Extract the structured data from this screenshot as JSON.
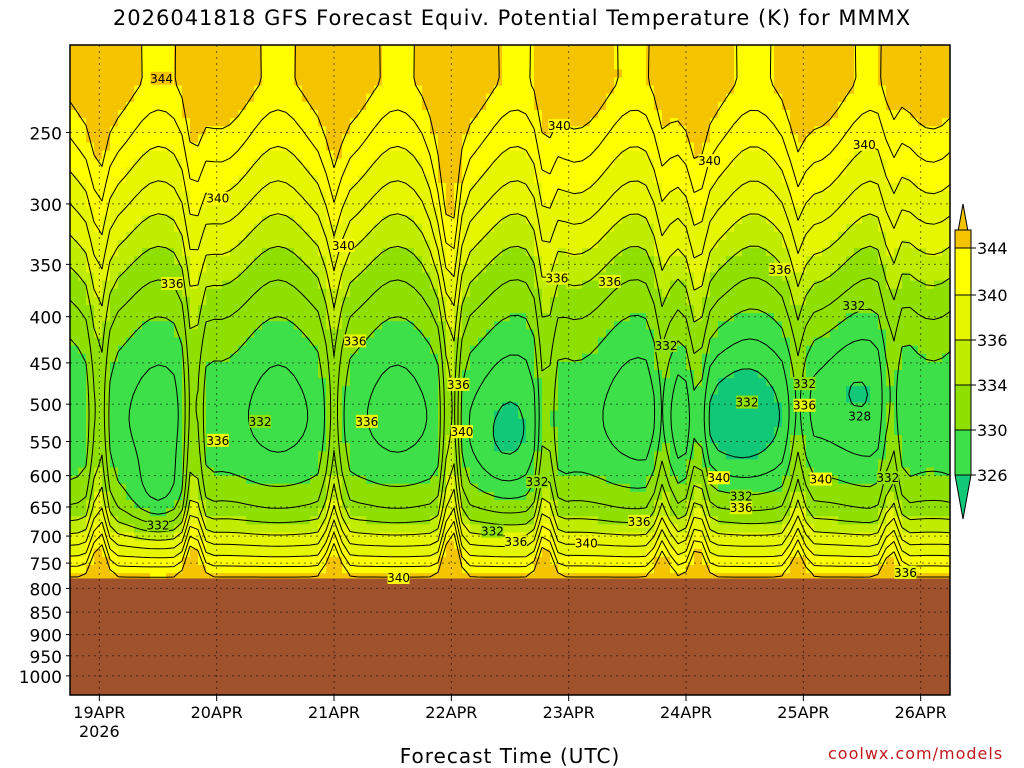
{
  "title": "2026041818 GFS Forecast Equiv. Potential Temperature (K) for MMMX",
  "xlabel": "Forecast Time (UTC)",
  "credit": "coolwx.com/models",
  "colors": {
    "ge344": "#f5c400",
    "r340": "#ffff00",
    "r336": "#e6f500",
    "r334": "#c0ec00",
    "r330": "#8fe000",
    "r326": "#3ee04a",
    "lt326": "#10c878",
    "terrain": "#a0522d",
    "contour": "#000000"
  },
  "chart_data": {
    "type": "heatmap",
    "title": "2026041818 GFS Forecast Equiv. Potential Temperature (K) for MMMX",
    "xlabel": "Forecast Time (UTC)",
    "ylabel": "",
    "x_ticks": [
      "19APR",
      "20APR",
      "21APR",
      "22APR",
      "23APR",
      "24APR",
      "25APR",
      "26APR"
    ],
    "x_tick_year": "2026",
    "x_tick_days": [
      0.25,
      1.25,
      2.25,
      3.25,
      4.25,
      5.25,
      6.25,
      7.25
    ],
    "x_range_days": [
      0,
      7.5
    ],
    "y_ticks": [
      250,
      300,
      350,
      400,
      450,
      500,
      550,
      600,
      650,
      700,
      750,
      800,
      850,
      900,
      950,
      1000
    ],
    "y_range_hpa": [
      200,
      1050
    ],
    "y_scale": "log-pressure (inverted)",
    "grid": true,
    "legend_levels": [
      344,
      340,
      336,
      334,
      330,
      326
    ],
    "legend_placement": "right",
    "terrain_top_hpa": 780,
    "contour_labels": [
      {
        "text": "344",
        "day": 0.78,
        "hpa": 218
      },
      {
        "text": "340",
        "day": 4.17,
        "hpa": 246
      },
      {
        "text": "340",
        "day": 5.45,
        "hpa": 269
      },
      {
        "text": "340",
        "day": 6.77,
        "hpa": 258
      },
      {
        "text": "340",
        "day": 1.26,
        "hpa": 296
      },
      {
        "text": "340",
        "day": 2.33,
        "hpa": 334
      },
      {
        "text": "336",
        "day": 0.87,
        "hpa": 368
      },
      {
        "text": "336",
        "day": 4.15,
        "hpa": 363
      },
      {
        "text": "336",
        "day": 4.6,
        "hpa": 366
      },
      {
        "text": "336",
        "day": 6.05,
        "hpa": 355
      },
      {
        "text": "332",
        "day": 6.68,
        "hpa": 389
      },
      {
        "text": "336",
        "day": 2.43,
        "hpa": 426
      },
      {
        "text": "332",
        "day": 5.08,
        "hpa": 431
      },
      {
        "text": "336",
        "day": 3.31,
        "hpa": 476
      },
      {
        "text": "332",
        "day": 6.26,
        "hpa": 475
      },
      {
        "text": "332",
        "day": 5.77,
        "hpa": 498
      },
      {
        "text": "336",
        "day": 6.26,
        "hpa": 502
      },
      {
        "text": "328",
        "day": 6.73,
        "hpa": 516
      },
      {
        "text": "332",
        "day": 1.62,
        "hpa": 523
      },
      {
        "text": "336",
        "day": 2.53,
        "hpa": 523
      },
      {
        "text": "340",
        "day": 3.34,
        "hpa": 537
      },
      {
        "text": "336",
        "day": 1.26,
        "hpa": 549
      },
      {
        "text": "340",
        "day": 5.53,
        "hpa": 604
      },
      {
        "text": "332",
        "day": 3.98,
        "hpa": 610
      },
      {
        "text": "340",
        "day": 6.4,
        "hpa": 606
      },
      {
        "text": "332",
        "day": 6.97,
        "hpa": 604
      },
      {
        "text": "332",
        "day": 5.72,
        "hpa": 633
      },
      {
        "text": "336",
        "day": 5.72,
        "hpa": 652
      },
      {
        "text": "332",
        "day": 0.75,
        "hpa": 681
      },
      {
        "text": "336",
        "day": 4.85,
        "hpa": 675
      },
      {
        "text": "332",
        "day": 3.6,
        "hpa": 692
      },
      {
        "text": "336",
        "day": 3.8,
        "hpa": 711
      },
      {
        "text": "340",
        "day": 4.4,
        "hpa": 713
      },
      {
        "text": "340",
        "day": 2.8,
        "hpa": 779
      },
      {
        "text": "336",
        "day": 7.12,
        "hpa": 769
      }
    ]
  }
}
